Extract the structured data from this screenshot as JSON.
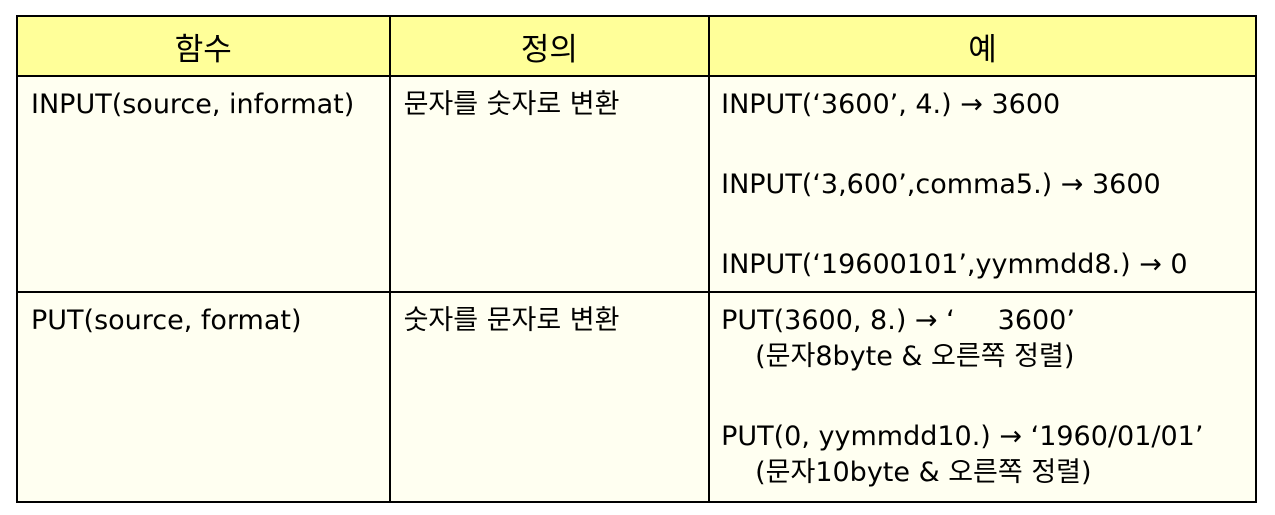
{
  "table": {
    "headers": [
      "함수",
      "정의",
      "예"
    ],
    "rows": [
      {
        "function": "INPUT(source, informat)",
        "definition": "문자를 숫자로 변환",
        "examples": [
          {
            "code": "INPUT(‘3600’, 4.) → 3600"
          },
          {
            "code": "INPUT(‘3,600’,comma5.) → 3600"
          },
          {
            "code": "INPUT(‘19600101’,yymmdd8.) → 0"
          }
        ]
      },
      {
        "function": "PUT(source, format)",
        "definition": "숫자를 문자로 변환",
        "examples": [
          {
            "code": "PUT(3600, 8.) → ‘     3600’",
            "note": "(문자8byte & 오른쪽 정렬)"
          },
          {
            "code": "PUT(0, yymmdd10.) → ‘1960/01/01’",
            "note": "(문자10byte & 오른쪽 정렬)"
          }
        ]
      }
    ]
  },
  "colors": {
    "header_background": "#ffff99",
    "cell_background": "#fffff1",
    "border": "#000000"
  }
}
